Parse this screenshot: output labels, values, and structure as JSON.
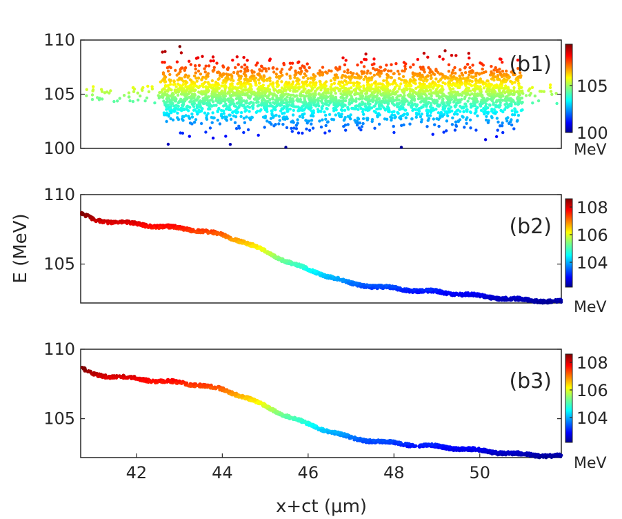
{
  "chart_data": [
    {
      "type": "scatter",
      "panel_label": "(b1)",
      "ylim": [
        100,
        110
      ],
      "xlim": [
        40.7,
        51.9
      ],
      "y_ticks": [
        "100",
        "105",
        "110"
      ],
      "distribution": "gaussian energy spread around 105 MeV",
      "center_energy": 105,
      "energy_range": [
        100.1,
        109.4
      ],
      "point_count": 3200,
      "x_support": [
        40.8,
        51.8
      ],
      "colorbar": {
        "min": 100,
        "max": 109.4,
        "ticks": [
          "100",
          "105"
        ],
        "unit": "MeV"
      }
    },
    {
      "type": "scatter",
      "panel_label": "(b2)",
      "ylabel": "E (MeV)",
      "ylim": [
        102.2,
        110
      ],
      "xlim": [
        40.7,
        51.9
      ],
      "y_ticks": [
        "105",
        "110"
      ],
      "curve_x": [
        40.7,
        41.0,
        41.5,
        42.0,
        42.5,
        43.0,
        43.5,
        44.0,
        44.5,
        45.0,
        45.5,
        46.0,
        46.5,
        47.0,
        47.5,
        48.0,
        48.5,
        49.0,
        49.5,
        50.0,
        50.5,
        51.0,
        51.5,
        51.9
      ],
      "curve_y": [
        108.6,
        108.2,
        108.0,
        107.9,
        107.7,
        107.6,
        107.4,
        107.1,
        106.6,
        105.9,
        105.2,
        104.6,
        104.1,
        103.6,
        103.4,
        103.25,
        103.1,
        103.0,
        102.85,
        102.7,
        102.55,
        102.42,
        102.35,
        102.3
      ],
      "colorbar": {
        "min": 102.2,
        "max": 108.6,
        "ticks": [
          "104",
          "106",
          "108"
        ],
        "unit": "MeV"
      }
    },
    {
      "type": "scatter",
      "panel_label": "(b3)",
      "xlabel": "x+ct (μm)",
      "ylim": [
        102.2,
        110
      ],
      "xlim": [
        40.7,
        51.9
      ],
      "x_ticks": [
        "42",
        "44",
        "46",
        "48",
        "50"
      ],
      "y_ticks": [
        "105",
        "110"
      ],
      "curve_x": [
        40.7,
        41.0,
        41.5,
        42.0,
        42.5,
        43.0,
        43.5,
        44.0,
        44.5,
        45.0,
        45.5,
        46.0,
        46.5,
        47.0,
        47.5,
        48.0,
        48.5,
        49.0,
        49.5,
        50.0,
        50.5,
        51.0,
        51.5,
        51.9
      ],
      "curve_y": [
        108.6,
        108.2,
        108.0,
        107.9,
        107.7,
        107.6,
        107.4,
        107.1,
        106.6,
        105.9,
        105.2,
        104.6,
        104.1,
        103.6,
        103.4,
        103.25,
        103.1,
        103.0,
        102.85,
        102.7,
        102.55,
        102.42,
        102.35,
        102.3
      ],
      "colorbar": {
        "min": 102.2,
        "max": 108.6,
        "ticks": [
          "104",
          "106",
          "108"
        ],
        "unit": "MeV"
      }
    }
  ]
}
